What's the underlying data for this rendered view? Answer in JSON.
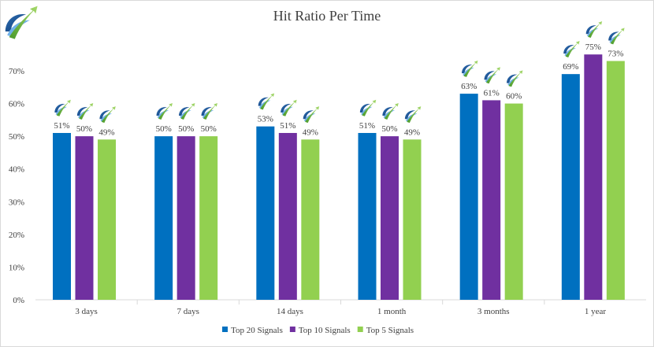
{
  "chart_data": {
    "type": "bar",
    "title": "Hit Ratio Per Time",
    "xlabel": "",
    "ylabel": "",
    "categories": [
      "3 days",
      "7 days",
      "14 days",
      "1 month",
      "3 months",
      "1 year"
    ],
    "ylim": [
      0,
      70
    ],
    "yticks": [
      0,
      10,
      20,
      30,
      40,
      50,
      60,
      70
    ],
    "ytick_labels": [
      "0%",
      "10%",
      "20%",
      "30%",
      "40%",
      "50%",
      "60%",
      "70%"
    ],
    "grid": false,
    "legend_position": "bottom",
    "series": [
      {
        "name": "Top 20 Signals",
        "color": "#0070c0",
        "values": [
          51,
          50,
          53,
          51,
          63,
          69
        ],
        "labels": [
          "51%",
          "50%",
          "53%",
          "51%",
          "63%",
          "69%"
        ]
      },
      {
        "name": "Top 10 Signals",
        "color": "#7030a0",
        "values": [
          50,
          50,
          51,
          50,
          61,
          75
        ],
        "labels": [
          "50%",
          "50%",
          "51%",
          "50%",
          "61%",
          "75%"
        ]
      },
      {
        "name": "Top 5 Signals",
        "color": "#92d050",
        "values": [
          49,
          50,
          49,
          49,
          60,
          73
        ],
        "labels": [
          "49%",
          "50%",
          "49%",
          "49%",
          "60%",
          "73%"
        ]
      }
    ],
    "icon": "logo-swoosh-arrow-icon"
  }
}
